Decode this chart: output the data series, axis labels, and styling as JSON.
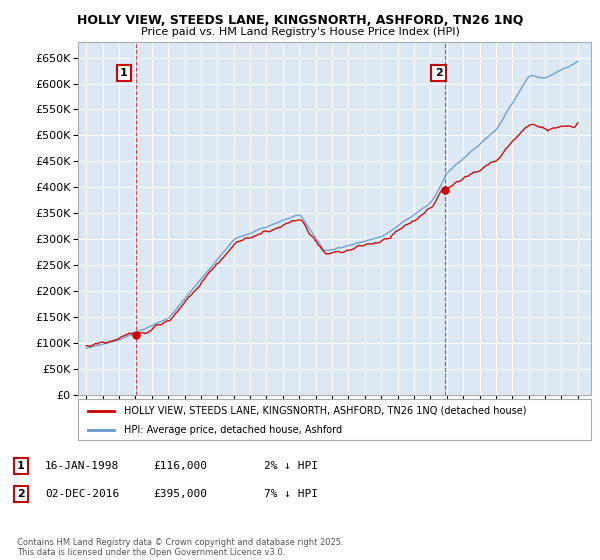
{
  "title": "HOLLY VIEW, STEEDS LANE, KINGSNORTH, ASHFORD, TN26 1NQ",
  "subtitle": "Price paid vs. HM Land Registry's House Price Index (HPI)",
  "legend_label_red": "HOLLY VIEW, STEEDS LANE, KINGSNORTH, ASHFORD, TN26 1NQ (detached house)",
  "legend_label_blue": "HPI: Average price, detached house, Ashford",
  "ann1_date": "16-JAN-1998",
  "ann1_price": "£116,000",
  "ann1_hpi": "2% ↓ HPI",
  "ann2_date": "02-DEC-2016",
  "ann2_price": "£395,000",
  "ann2_hpi": "7% ↓ HPI",
  "vline1_year": 1998.04,
  "vline2_year": 2016.92,
  "sale1_year": 1998.04,
  "sale1_price": 116000,
  "sale2_year": 2016.92,
  "sale2_price": 395000,
  "ylim": [
    0,
    680000
  ],
  "yticks": [
    0,
    50000,
    100000,
    150000,
    200000,
    250000,
    300000,
    350000,
    400000,
    450000,
    500000,
    550000,
    600000,
    650000
  ],
  "year_start": 1995,
  "year_end": 2025,
  "copyright_text": "Contains HM Land Registry data © Crown copyright and database right 2025.\nThis data is licensed under the Open Government Licence v3.0.",
  "bg_color": "#ffffff",
  "ax_bg_color": "#dce9f5",
  "grid_color": "#ffffff",
  "red_color": "#cc0000",
  "blue_color": "#6699cc"
}
